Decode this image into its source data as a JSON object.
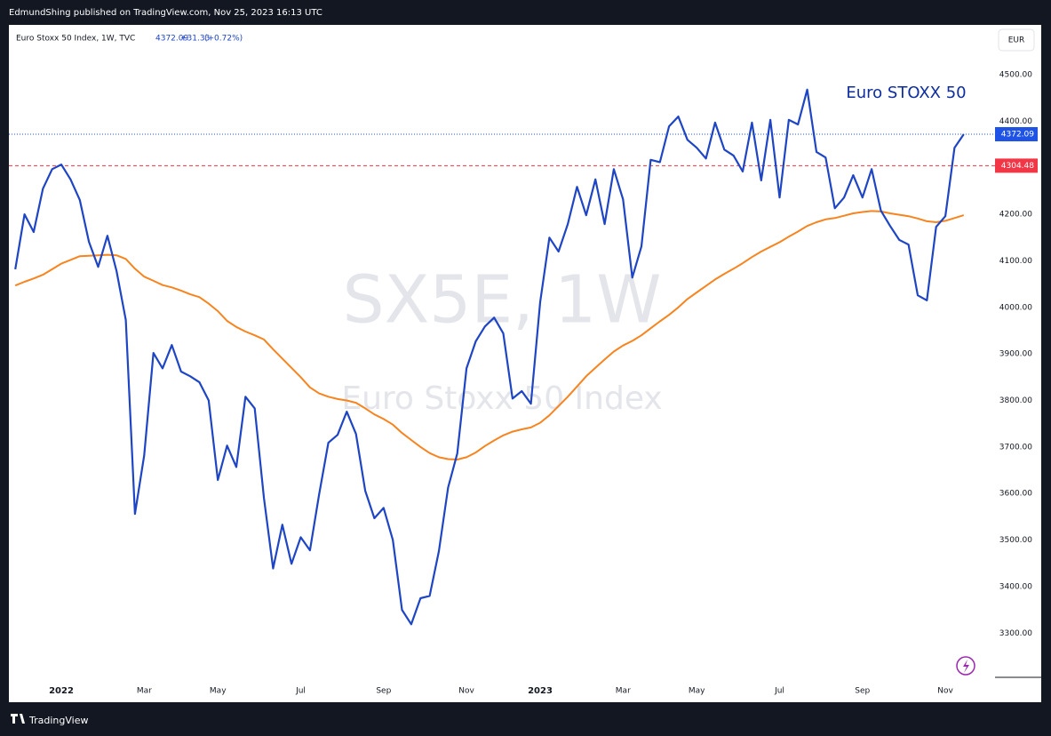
{
  "header": {
    "published": "EdmundShing published on TradingView.com, Nov 25, 2023 16:13 UTC"
  },
  "footer": {
    "brand": "TradingView"
  },
  "chart_data": {
    "type": "line",
    "legend": {
      "symbol": "Euro Stoxx 50 Index, 1W, TVC",
      "change": "+31.33",
      "change_pct": "(+0.72%)"
    },
    "currency": "EUR",
    "annotation": "Euro STOXX 50",
    "watermark": [
      "SX5E, 1W",
      "Euro Stoxx 50 Index"
    ],
    "categories": [
      null,
      null,
      null,
      null,
      null,
      "2022",
      null,
      null,
      null,
      null,
      null,
      null,
      null,
      null,
      "Mar",
      null,
      null,
      null,
      null,
      null,
      null,
      null,
      "May",
      null,
      null,
      null,
      null,
      null,
      null,
      null,
      null,
      "Jul",
      null,
      null,
      null,
      null,
      null,
      null,
      null,
      null,
      "Sep",
      null,
      null,
      null,
      null,
      null,
      null,
      null,
      null,
      "Nov",
      null,
      null,
      null,
      null,
      null,
      null,
      null,
      "2023",
      null,
      null,
      null,
      null,
      null,
      null,
      null,
      null,
      "Mar",
      null,
      null,
      null,
      null,
      null,
      null,
      null,
      "May",
      null,
      null,
      null,
      null,
      null,
      null,
      null,
      null,
      "Jul",
      null,
      null,
      null,
      null,
      null,
      null,
      null,
      null,
      "Sep",
      null,
      null,
      null,
      null,
      null,
      null,
      null,
      null,
      "Nov",
      null,
      null
    ],
    "series": [
      {
        "color": "#1e45c4",
        "values": [
          4082,
          4200,
          4162,
          4255,
          4297,
          4307,
          4275,
          4231,
          4141,
          4087,
          4154,
          4078,
          3973,
          3556,
          3682,
          3902,
          3869,
          3919,
          3862,
          3852,
          3839,
          3800,
          3629,
          3703,
          3657,
          3808,
          3783,
          3590,
          3439,
          3533,
          3449,
          3506,
          3478,
          3598,
          3709,
          3726,
          3776,
          3728,
          3606,
          3547,
          3569,
          3500,
          3350,
          3319,
          3375,
          3380,
          3476,
          3613,
          3686,
          3869,
          3927,
          3959,
          3978,
          3944,
          3804,
          3820,
          3793,
          4011,
          4150,
          4120,
          4179,
          4259,
          4198,
          4275,
          4179,
          4297,
          4232,
          4064,
          4131,
          4317,
          4312,
          4389,
          4410,
          4360,
          4343,
          4320,
          4397,
          4339,
          4326,
          4292,
          4397,
          4273,
          4403,
          4236,
          4403,
          4393,
          4468,
          4334,
          4322,
          4213,
          4236,
          4284,
          4236,
          4297,
          4208,
          4175,
          4145,
          4135,
          4026,
          4015,
          4173,
          4196,
          4343,
          4372.09
        ]
      },
      {
        "color": "#f7841f",
        "values": [
          4047,
          4055,
          4062,
          4070,
          4082,
          4094,
          4102,
          4110,
          4111,
          4112,
          4113,
          4112,
          4104,
          4083,
          4066,
          4057,
          4048,
          4043,
          4036,
          4028,
          4022,
          4008,
          3992,
          3971,
          3958,
          3948,
          3940,
          3931,
          3910,
          3890,
          3870,
          3850,
          3828,
          3815,
          3808,
          3803,
          3800,
          3795,
          3783,
          3770,
          3760,
          3748,
          3730,
          3715,
          3700,
          3687,
          3678,
          3674,
          3673,
          3678,
          3688,
          3702,
          3714,
          3725,
          3733,
          3738,
          3742,
          3752,
          3768,
          3788,
          3808,
          3830,
          3852,
          3870,
          3888,
          3905,
          3918,
          3928,
          3940,
          3955,
          3970,
          3984,
          4000,
          4018,
          4032,
          4046,
          4060,
          4072,
          4083,
          4095,
          4108,
          4120,
          4130,
          4140,
          4152,
          4163,
          4175,
          4183,
          4189,
          4192,
          4197,
          4202,
          4205,
          4207,
          4206,
          4202,
          4199,
          4196,
          4191,
          4185,
          4183,
          4186,
          4192,
          4198
        ]
      }
    ],
    "ylim": [
      3205,
      4607
    ],
    "yticks": [
      {
        "value": 3300,
        "label": "3300.00"
      },
      {
        "value": 3400,
        "label": "3400.00"
      },
      {
        "value": 3500,
        "label": "3500.00"
      },
      {
        "value": 3600,
        "label": "3600.00"
      },
      {
        "value": 3700,
        "label": "3700.00"
      },
      {
        "value": 3800,
        "label": "3800.00"
      },
      {
        "value": 3900,
        "label": "3900.00"
      },
      {
        "value": 4000,
        "label": "4000.00"
      },
      {
        "value": 4100,
        "label": "4100.00"
      },
      {
        "value": 4200,
        "label": "4200.00"
      },
      {
        "value": 4300,
        "label": "4300.00"
      },
      {
        "value": 4400,
        "label": "4400.00"
      },
      {
        "value": 4500,
        "label": "4500.00"
      }
    ],
    "hline": {
      "value": 4304.48,
      "color": "#f23645"
    },
    "last_price_color": "#1e53e5"
  }
}
